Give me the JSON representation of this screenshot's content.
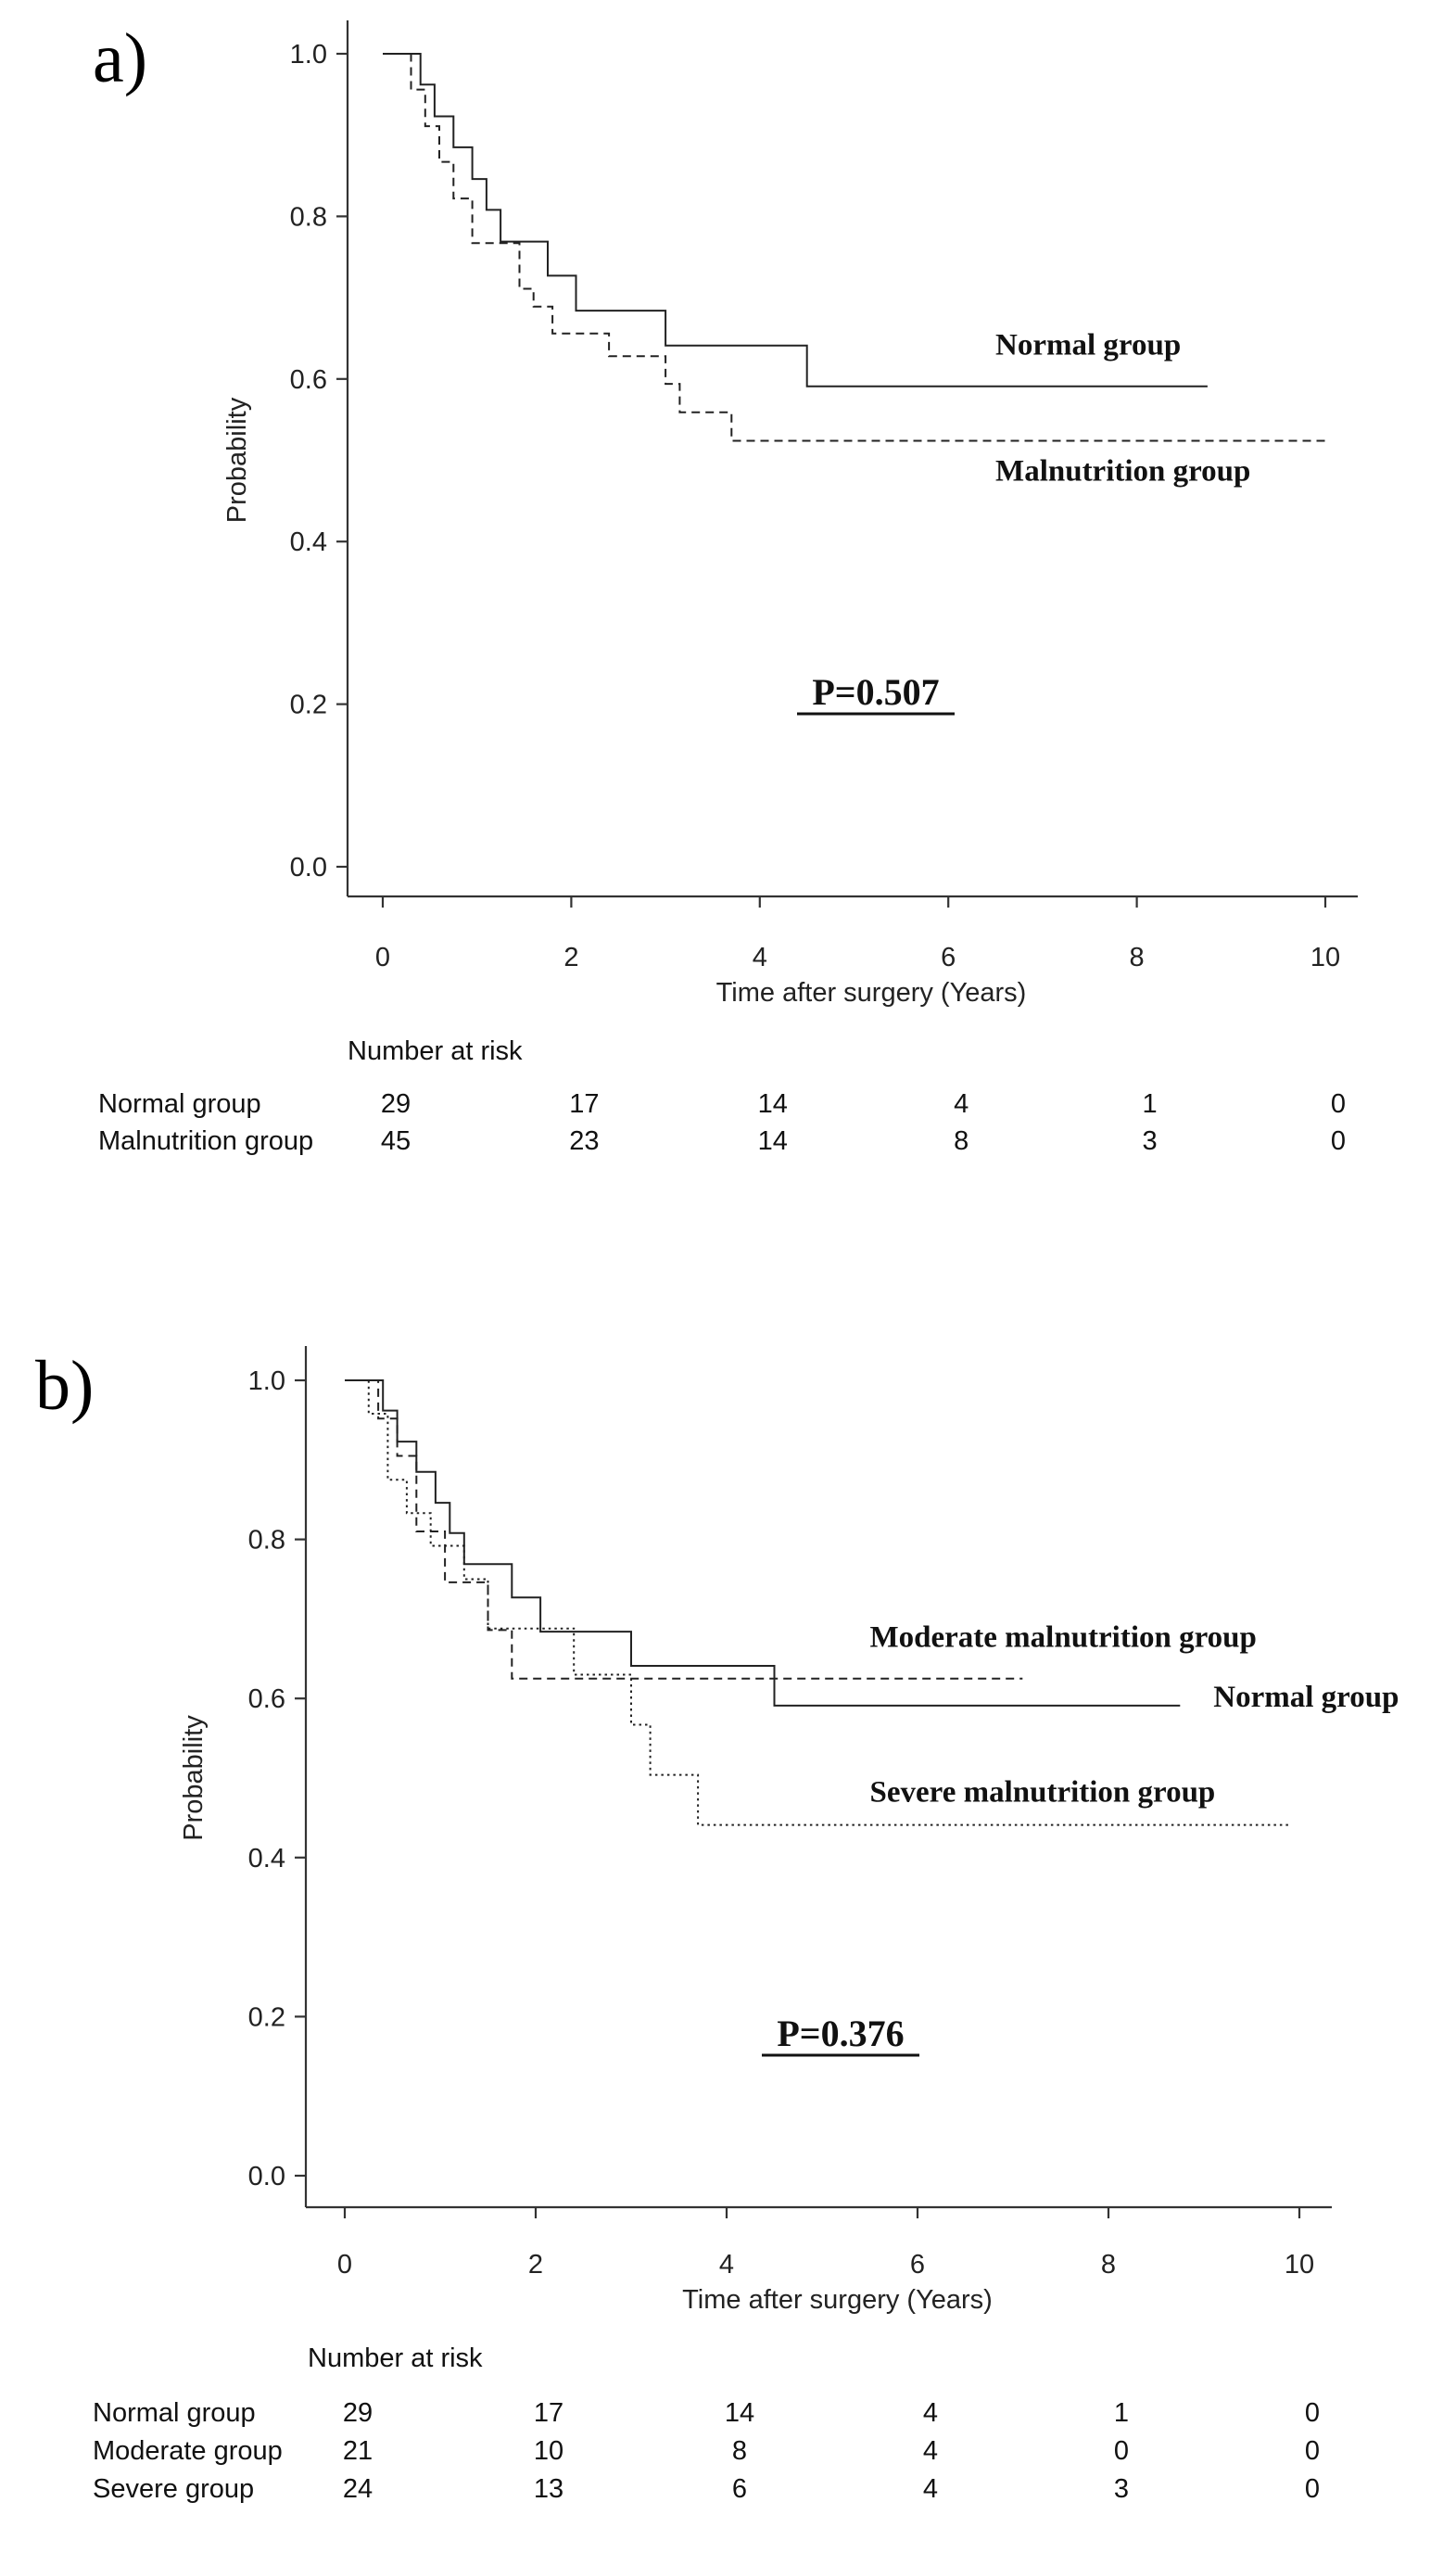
{
  "chart_data": [
    {
      "panel": "a)",
      "type": "line",
      "xlabel": "Time after surgery (Years)",
      "ylabel": "Probability",
      "xlim": [
        0,
        10
      ],
      "ylim": [
        0,
        1
      ],
      "xticks": [
        "0",
        "2",
        "4",
        "6",
        "8",
        "10"
      ],
      "yticks": [
        "0.0",
        "0.2",
        "0.4",
        "0.6",
        "0.8",
        "1.0"
      ],
      "p_value": "P=0.507",
      "series": [
        {
          "name": "Normal group",
          "style": "solid",
          "label_anchor": [
            6.5,
            0.63
          ],
          "x": [
            0,
            0.4,
            0.55,
            0.75,
            0.95,
            1.1,
            1.25,
            1.35,
            1.75,
            2.05,
            3.0,
            4.5,
            8.75
          ],
          "y": [
            1.0,
            0.962,
            0.923,
            0.885,
            0.846,
            0.808,
            0.769,
            0.769,
            0.727,
            0.684,
            0.641,
            0.591,
            0.591
          ]
        },
        {
          "name": "Malnutrition group",
          "style": "dashed",
          "label_anchor": [
            6.5,
            0.475
          ],
          "x": [
            0,
            0.3,
            0.45,
            0.6,
            0.75,
            0.95,
            1.3,
            1.45,
            1.6,
            1.8,
            2.4,
            3.0,
            3.15,
            3.7,
            10.0
          ],
          "y": [
            1.0,
            0.956,
            0.911,
            0.867,
            0.822,
            0.767,
            0.767,
            0.711,
            0.689,
            0.656,
            0.628,
            0.594,
            0.559,
            0.524,
            0.524
          ]
        }
      ],
      "risk_table": {
        "title": "Number at risk",
        "times": [
          0,
          2,
          4,
          6,
          8,
          10
        ],
        "rows": [
          {
            "label": "Normal group",
            "values": [
              "29",
              "17",
              "14",
              "4",
              "1",
              "0"
            ]
          },
          {
            "label": "Malnutrition group",
            "values": [
              "45",
              "23",
              "14",
              "8",
              "3",
              "0"
            ]
          }
        ]
      }
    },
    {
      "panel": "b)",
      "type": "line",
      "xlabel": "Time after surgery (Years)",
      "ylabel": "Probability",
      "xlim": [
        0,
        10
      ],
      "ylim": [
        0,
        1
      ],
      "xticks": [
        "0",
        "2",
        "4",
        "6",
        "8",
        "10"
      ],
      "yticks": [
        "0.0",
        "0.2",
        "0.4",
        "0.6",
        "0.8",
        "1.0"
      ],
      "p_value": "P=0.376",
      "series": [
        {
          "name": "Normal group",
          "style": "solid",
          "label_anchor": [
            9.1,
            0.59
          ],
          "x": [
            0,
            0.4,
            0.55,
            0.75,
            0.95,
            1.1,
            1.25,
            1.35,
            1.75,
            2.05,
            3.0,
            4.5,
            8.75
          ],
          "y": [
            1.0,
            0.962,
            0.923,
            0.885,
            0.846,
            0.808,
            0.769,
            0.769,
            0.727,
            0.684,
            0.641,
            0.591,
            0.591
          ]
        },
        {
          "name": "Moderate malnutrition group",
          "style": "dashed",
          "label_anchor": [
            5.5,
            0.665
          ],
          "x": [
            0,
            0.35,
            0.55,
            0.75,
            1.05,
            1.5,
            1.75,
            7.1
          ],
          "y": [
            1.0,
            0.952,
            0.905,
            0.81,
            0.746,
            0.686,
            0.625,
            0.625
          ]
        },
        {
          "name": "Severe malnutrition group",
          "style": "dotted",
          "label_anchor": [
            5.5,
            0.47
          ],
          "x": [
            0,
            0.25,
            0.45,
            0.65,
            0.9,
            1.25,
            1.5,
            2.4,
            3.0,
            3.2,
            3.7,
            9.9
          ],
          "y": [
            1.0,
            0.958,
            0.875,
            0.833,
            0.792,
            0.75,
            0.688,
            0.63,
            0.567,
            0.504,
            0.441,
            0.441
          ]
        }
      ],
      "risk_table": {
        "title": "Number at risk",
        "times": [
          0,
          2,
          4,
          6,
          8,
          10
        ],
        "rows": [
          {
            "label": "Normal group",
            "values": [
              "29",
              "17",
              "14",
              "4",
              "1",
              "0"
            ]
          },
          {
            "label": "Moderate group",
            "values": [
              "21",
              "10",
              "8",
              "4",
              "0",
              "0"
            ]
          },
          {
            "label": "Severe group",
            "values": [
              "24",
              "13",
              "6",
              "4",
              "3",
              "0"
            ]
          }
        ]
      }
    }
  ]
}
